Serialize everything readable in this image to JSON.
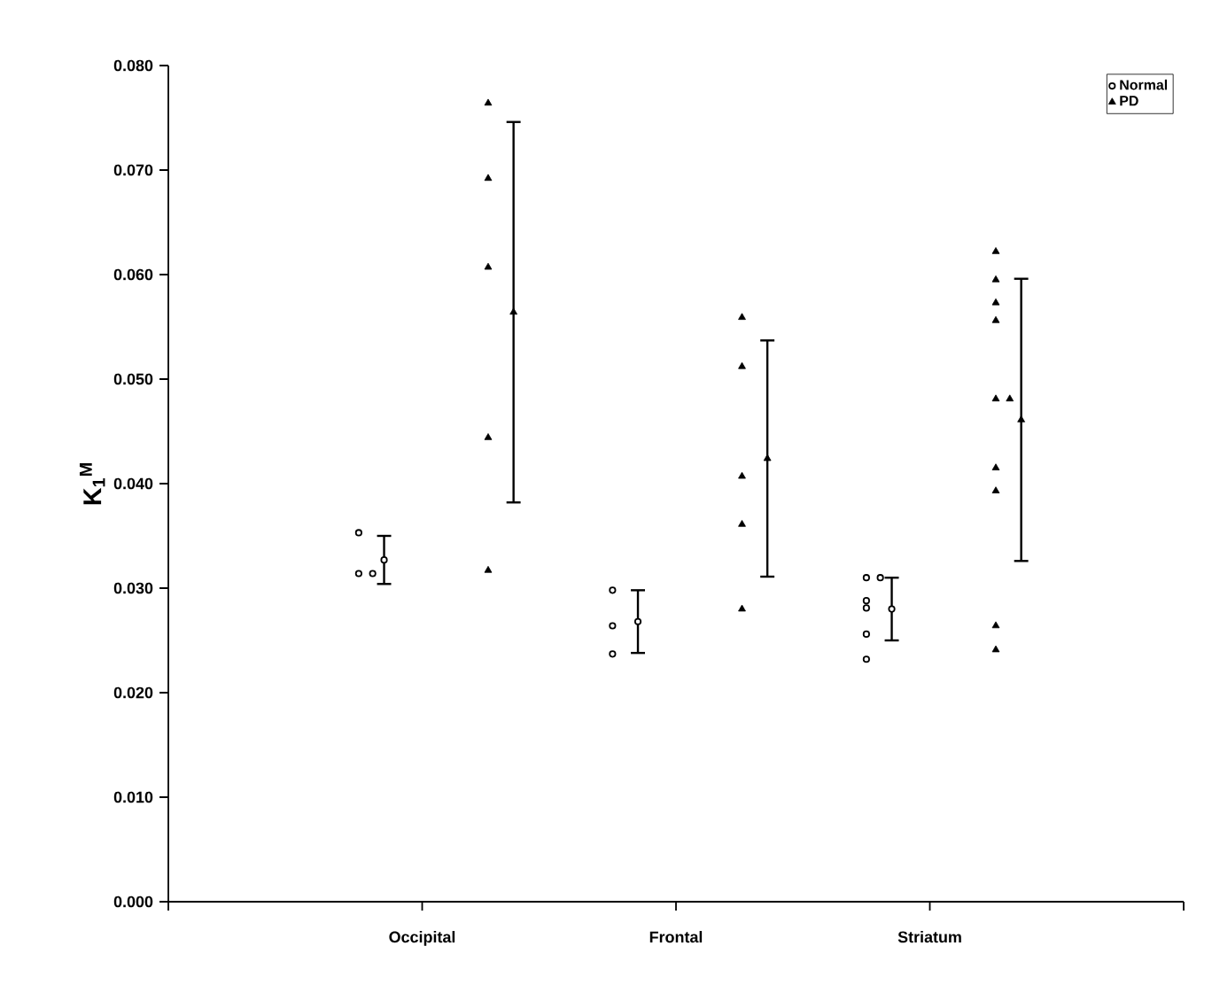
{
  "chart_data": {
    "type": "scatter",
    "ylabel": "K$_{1}$$^{M}$",
    "categories": [
      "Occipital",
      "Frontal",
      "Striatum"
    ],
    "ylim": [
      0,
      0.08
    ],
    "yticks": [
      {
        "value": 0,
        "label": "0.000"
      },
      {
        "value": 0.01,
        "label": "0.010"
      },
      {
        "value": 0.02,
        "label": "0.020"
      },
      {
        "value": 0.03,
        "label": "0.030"
      },
      {
        "value": 0.04,
        "label": "0.040"
      },
      {
        "value": 0.05,
        "label": "0.050"
      },
      {
        "value": 0.06,
        "label": "0.060"
      },
      {
        "value": 0.07,
        "label": "0.070"
      },
      {
        "value": 0.08,
        "label": "0.080"
      }
    ],
    "grid": false,
    "legend": "top right",
    "series": [
      {
        "name": "Normal",
        "color": "#000000",
        "marker": "circle",
        "x": [
          "Occipital",
          "Occipital",
          "Occipital",
          "Frontal",
          "Frontal",
          "Frontal",
          "Striatum",
          "Striatum",
          "Striatum",
          "Striatum",
          "Striatum",
          "Striatum"
        ],
        "values": [
          0.0353,
          0.0314,
          0.0314,
          0.0298,
          0.0264,
          0.0237,
          0.031,
          0.031,
          0.0288,
          0.0281,
          0.0256,
          0.0232
        ]
      },
      {
        "name": "PD",
        "color": "#000000",
        "marker": "triangle",
        "x": [
          "Occipital",
          "Occipital",
          "Occipital",
          "Occipital",
          "Occipital",
          "Frontal",
          "Frontal",
          "Frontal",
          "Frontal",
          "Frontal",
          "Striatum",
          "Striatum",
          "Striatum",
          "Striatum",
          "Striatum",
          "Striatum",
          "Striatum",
          "Striatum",
          "Striatum",
          "Striatum"
        ],
        "values": [
          0.0764,
          0.0692,
          0.0607,
          0.0444,
          0.0317,
          0.0559,
          0.0512,
          0.0407,
          0.0361,
          0.028,
          0.0622,
          0.0595,
          0.0573,
          0.0556,
          0.0481,
          0.0481,
          0.0415,
          0.0393,
          0.0264,
          0.0241
        ]
      },
      {
        "color": "#000000",
        "marker": "circle",
        "x": [
          "Occipital",
          "Frontal",
          "Striatum"
        ],
        "values": [
          0.0327,
          0.0268,
          0.028
        ],
        "errors": [
          0.0023,
          0.003,
          0.003
        ]
      },
      {
        "color": "#000000",
        "marker": "triangle",
        "x": [
          "Occipital",
          "Frontal",
          "Striatum"
        ],
        "values": [
          0.0564,
          0.0424,
          0.0461
        ],
        "errors": [
          0.0182,
          0.0113,
          0.0135
        ]
      }
    ]
  }
}
